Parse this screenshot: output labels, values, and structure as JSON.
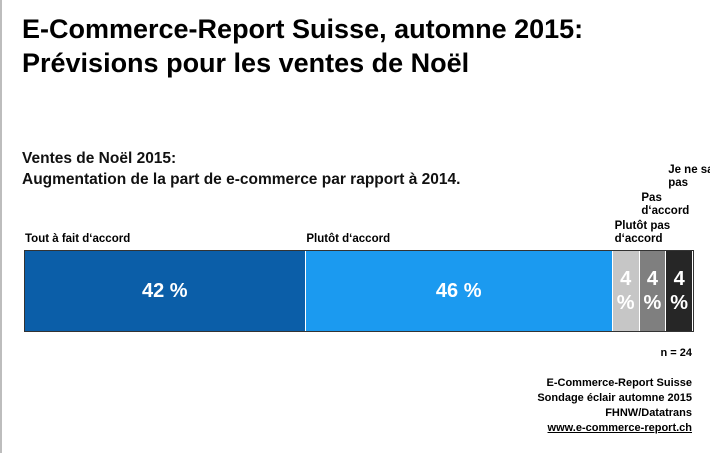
{
  "chart_data": {
    "type": "bar",
    "title": [
      "E-Commerce-Report Suisse, automne 2015:",
      "Prévisions pour les ventes de Noël"
    ],
    "subtitle": [
      "Ventes de Noël 2015:",
      "Augmentation de la part de e-commerce par rapport à 2014."
    ],
    "categories": [
      "Tout à fait d‘accord",
      "Plutôt d‘accord",
      "Plutôt pas d‘accord",
      "Pas d‘accord",
      "Je ne sais pas"
    ],
    "values": [
      42,
      46,
      4,
      4,
      4
    ],
    "value_labels": [
      "42 %",
      "46 %",
      "4 %",
      "4 %",
      "4 %"
    ],
    "colors": [
      "#0b5ea8",
      "#1b9af0",
      "#c6c6c6",
      "#7f7f7f",
      "#262626"
    ],
    "note": "n = 24",
    "source": [
      "E-Commerce-Report Suisse",
      "Sondage éclair automne 2015",
      "FHNW/Datatrans",
      "www.e-commerce-report.ch"
    ]
  }
}
